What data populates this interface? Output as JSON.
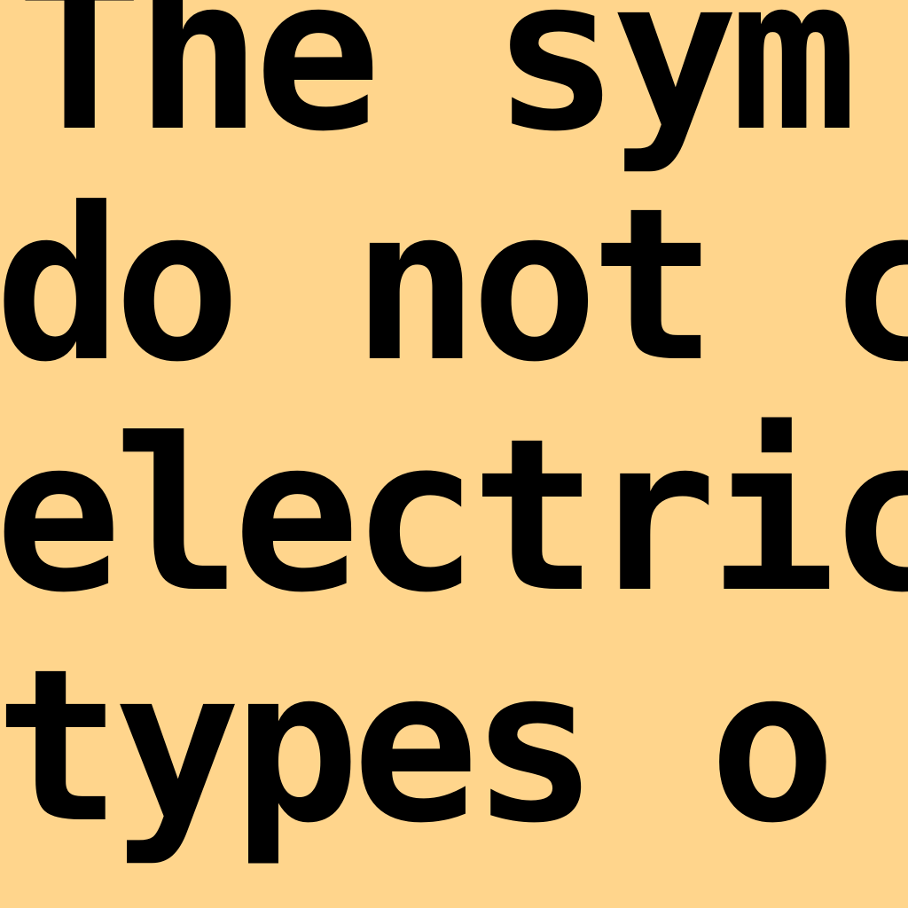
{
  "document": {
    "background_color": "#FFD58C",
    "text_color": "#000000",
    "lines": [
      "The sym",
      "do not c",
      "electric",
      "types o"
    ]
  }
}
